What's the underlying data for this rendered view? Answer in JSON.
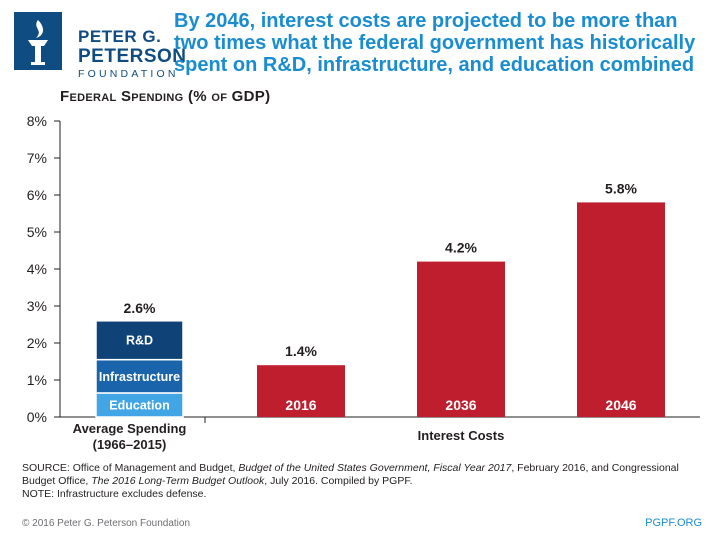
{
  "header": {
    "logo": {
      "line1": "PETER G.",
      "line2": "PETERSON",
      "line3": "FOUNDATION"
    },
    "title": "By 2046, interest costs are projected to be more than two times what the federal government has historically spent on R&D, infrastructure, and education combined"
  },
  "subtitle": "Federal Spending (% of GDP)",
  "colors": {
    "education": "#42a5e6",
    "infrastructure": "#1a64ac",
    "rd": "#0f4378",
    "interest": "#be1e2d",
    "axis": "#231f20"
  },
  "chart_data": {
    "type": "bar",
    "title": "Federal Spending (% of GDP)",
    "ylim": [
      0,
      8
    ],
    "yticks": [
      0,
      1,
      2,
      3,
      4,
      5,
      6,
      7,
      8
    ],
    "ytick_labels": [
      "0%",
      "1%",
      "2%",
      "3%",
      "4%",
      "5%",
      "6%",
      "7%",
      "8%"
    ],
    "stacked_bar": {
      "category": "Average Spending (1966–2015)",
      "category_lines": [
        "Average Spending",
        "(1966–2015)"
      ],
      "total_label": "2.6%",
      "segments": [
        {
          "name": "Education",
          "value": 0.65
        },
        {
          "name": "Infrastructure",
          "value": 0.9
        },
        {
          "name": "R&D",
          "value": 1.05
        }
      ]
    },
    "interest_group": {
      "label": "Interest Costs",
      "bars": [
        {
          "year": "2016",
          "value": 1.4,
          "label": "1.4%"
        },
        {
          "year": "2036",
          "value": 4.2,
          "label": "4.2%"
        },
        {
          "year": "2046",
          "value": 5.8,
          "label": "5.8%"
        }
      ]
    }
  },
  "source": {
    "prefix": "SOURCE: Office of Management and Budget, ",
    "doc1": "Budget of the United States Government, Fiscal Year 2017",
    "mid": ", February 2016, and Congressional Budget Office, ",
    "doc2": "The 2016 Long-Term Budget Outlook",
    "suffix": ", July 2016. Compiled by PGPF.",
    "note": "NOTE: Infrastructure excludes defense."
  },
  "footer": {
    "copyright": "© 2016 Peter G. Peterson Foundation",
    "site": "PGPF.ORG"
  }
}
